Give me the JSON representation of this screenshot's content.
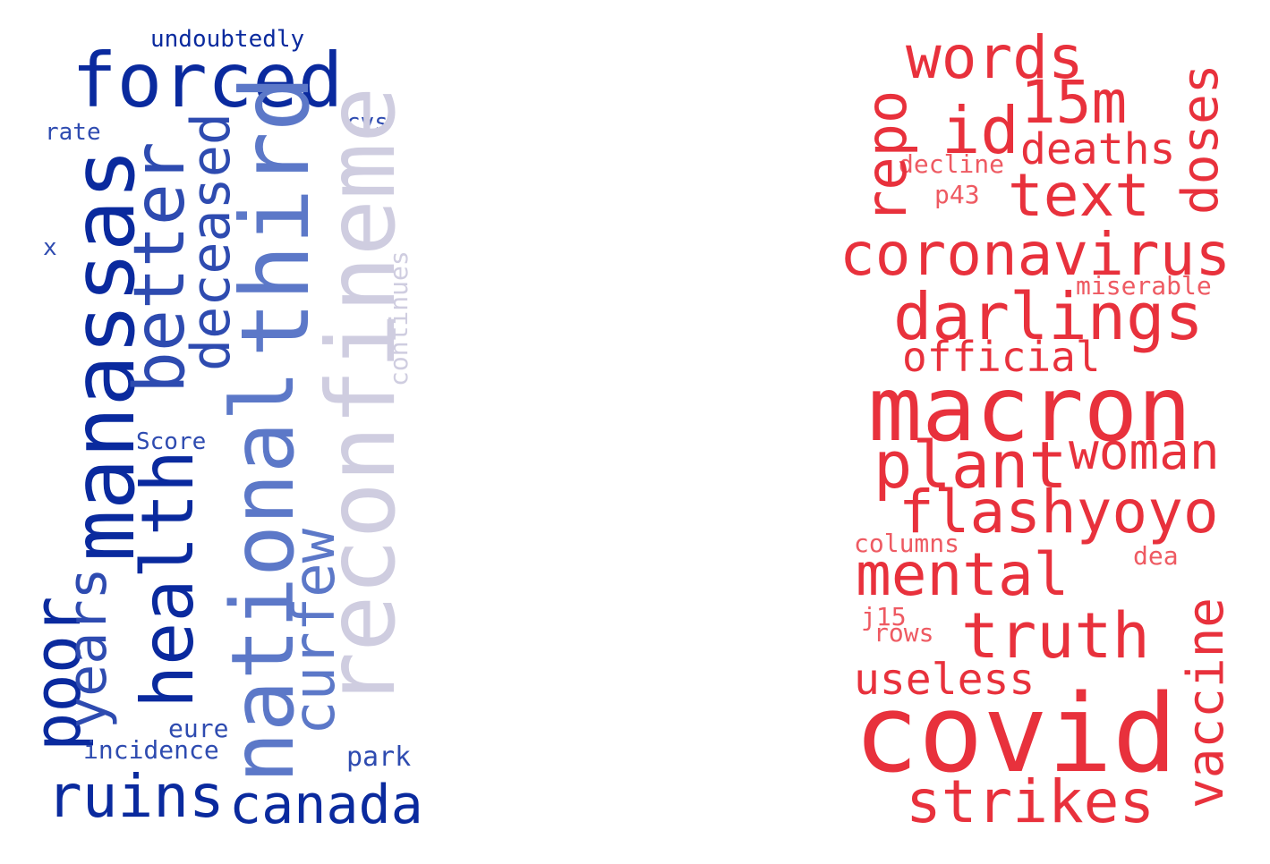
{
  "colors": {
    "dark_blue": "#0a2a9e",
    "mid_blue": "#2e4bb0",
    "light_blue": "#5c78c8",
    "pale_blue": "#9fb0dc",
    "lavender": "#cfcde0",
    "red": "#e8313c",
    "light_red": "#ee5a62"
  },
  "left_cloud": {
    "words": [
      {
        "text": "forced",
        "color": "dark_blue",
        "rotated": false
      },
      {
        "text": "undoubtedly",
        "color": "dark_blue",
        "rotated": false
      },
      {
        "text": "rate",
        "color": "mid_blue",
        "rotated": false
      },
      {
        "text": "cvs",
        "color": "mid_blue",
        "rotated": false
      },
      {
        "text": "x",
        "color": "mid_blue",
        "rotated": false
      },
      {
        "text": "Score",
        "color": "mid_blue",
        "rotated": false
      },
      {
        "text": "manassas",
        "color": "dark_blue",
        "rotated": true
      },
      {
        "text": "better",
        "color": "mid_blue",
        "rotated": true
      },
      {
        "text": "deceased",
        "color": "mid_blue",
        "rotated": true
      },
      {
        "text": "third",
        "color": "light_blue",
        "rotated": true
      },
      {
        "text": "reconfineme",
        "color": "lavender",
        "rotated": true
      },
      {
        "text": "continues",
        "color": "lavender",
        "rotated": true
      },
      {
        "text": "health",
        "color": "dark_blue",
        "rotated": true
      },
      {
        "text": "national",
        "color": "light_blue",
        "rotated": true
      },
      {
        "text": "curfew",
        "color": "light_blue",
        "rotated": true
      },
      {
        "text": "poor",
        "color": "dark_blue",
        "rotated": true
      },
      {
        "text": "years",
        "color": "mid_blue",
        "rotated": true
      },
      {
        "text": "eure",
        "color": "mid_blue",
        "rotated": false
      },
      {
        "text": "incidence",
        "color": "mid_blue",
        "rotated": false
      },
      {
        "text": "park",
        "color": "mid_blue",
        "rotated": false
      },
      {
        "text": "ruins",
        "color": "dark_blue",
        "rotated": false
      },
      {
        "text": "canada",
        "color": "dark_blue",
        "rotated": false
      }
    ]
  },
  "right_cloud": {
    "words": [
      {
        "text": "words",
        "color": "red",
        "rotated": false
      },
      {
        "text": "15m",
        "color": "red",
        "rotated": false
      },
      {
        "text": "id",
        "color": "red",
        "rotated": false
      },
      {
        "text": "deaths",
        "color": "red",
        "rotated": false
      },
      {
        "text": "decline",
        "color": "light_red",
        "rotated": false
      },
      {
        "text": "p43",
        "color": "light_red",
        "rotated": false
      },
      {
        "text": "text",
        "color": "red",
        "rotated": false
      },
      {
        "text": "repo",
        "color": "red",
        "rotated": true
      },
      {
        "text": "doses",
        "color": "red",
        "rotated": true
      },
      {
        "text": "coronavirus",
        "color": "red",
        "rotated": false
      },
      {
        "text": "miserable",
        "color": "light_red",
        "rotated": false
      },
      {
        "text": "darlings",
        "color": "red",
        "rotated": false
      },
      {
        "text": "official",
        "color": "red",
        "rotated": false
      },
      {
        "text": "macron",
        "color": "red",
        "rotated": false
      },
      {
        "text": "woman",
        "color": "red",
        "rotated": false
      },
      {
        "text": "plant",
        "color": "red",
        "rotated": false
      },
      {
        "text": "flashyoyo",
        "color": "red",
        "rotated": false
      },
      {
        "text": "columns",
        "color": "light_red",
        "rotated": false
      },
      {
        "text": "dea",
        "color": "light_red",
        "rotated": false
      },
      {
        "text": "mental",
        "color": "red",
        "rotated": false
      },
      {
        "text": "vaccine",
        "color": "red",
        "rotated": true
      },
      {
        "text": "j15",
        "color": "light_red",
        "rotated": false
      },
      {
        "text": "rows",
        "color": "light_red",
        "rotated": false
      },
      {
        "text": "truth",
        "color": "red",
        "rotated": false
      },
      {
        "text": "useless",
        "color": "red",
        "rotated": false
      },
      {
        "text": "covid",
        "color": "red",
        "rotated": false
      },
      {
        "text": "strikes",
        "color": "red",
        "rotated": false
      }
    ]
  }
}
